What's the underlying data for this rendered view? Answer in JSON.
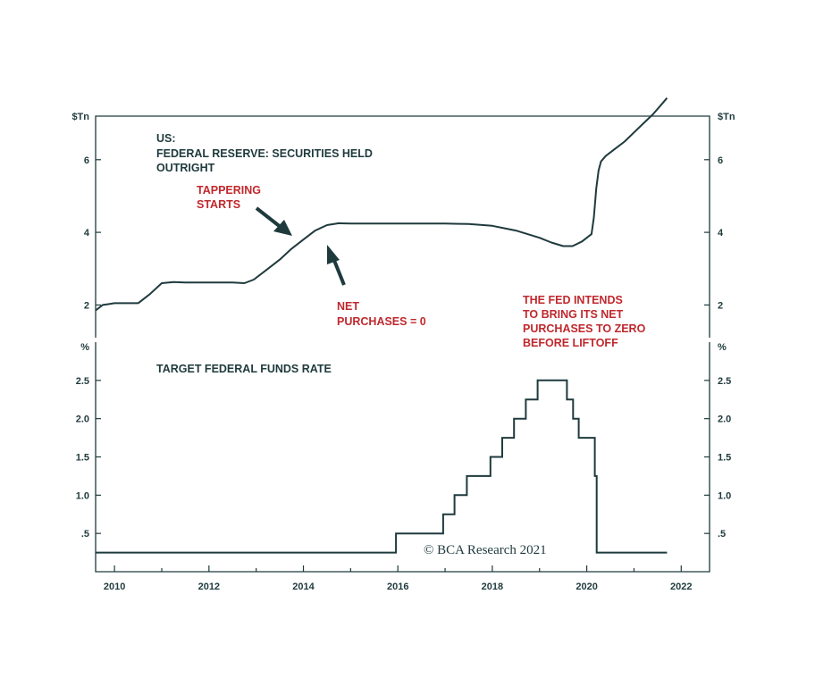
{
  "colors": {
    "ink": "#1f3a3d",
    "accent": "#c0282d"
  },
  "chart_data": [
    {
      "type": "line",
      "panel": "top",
      "title_lines": [
        "US:",
        "FEDERAL RESERVE: SECURITIES HELD",
        "OUTRIGHT"
      ],
      "unit_left": "$Tn",
      "unit_right": "$Tn",
      "ylim": [
        1.1,
        7.2
      ],
      "xlim": [
        2009.6,
        2022.6
      ],
      "yticks": [
        "2",
        "4",
        "6"
      ],
      "ytick_values": [
        2,
        4,
        6
      ],
      "series": [
        {
          "x": [
            2009.6,
            2009.75,
            2009.9,
            2010.0,
            2010.3,
            2010.5,
            2010.75,
            2011.0,
            2011.25,
            2011.5,
            2011.75,
            2012.0,
            2012.25,
            2012.5,
            2012.75,
            2012.95,
            2013.25,
            2013.5,
            2013.75,
            2014.0,
            2014.25,
            2014.5,
            2014.75,
            2015.0,
            2015.5,
            2016.0,
            2016.5,
            2017.0,
            2017.5,
            2018.0,
            2018.5,
            2019.0,
            2019.25,
            2019.5,
            2019.7,
            2019.9,
            2020.1,
            2020.15,
            2020.2,
            2020.25,
            2020.3,
            2020.4,
            2020.6,
            2020.8,
            2021.0,
            2021.2,
            2021.4,
            2021.6,
            2021.7
          ],
          "y": [
            1.85,
            2.0,
            2.03,
            2.05,
            2.05,
            2.05,
            2.3,
            2.6,
            2.63,
            2.62,
            2.62,
            2.62,
            2.62,
            2.62,
            2.6,
            2.7,
            3.0,
            3.25,
            3.55,
            3.8,
            4.05,
            4.2,
            4.25,
            4.24,
            4.24,
            4.24,
            4.24,
            4.24,
            4.23,
            4.18,
            4.05,
            3.85,
            3.72,
            3.62,
            3.62,
            3.75,
            3.95,
            4.4,
            5.2,
            5.7,
            5.95,
            6.1,
            6.3,
            6.5,
            6.75,
            7.0,
            7.25,
            7.55,
            7.7
          ]
        }
      ],
      "annotations": [
        {
          "text_lines": [
            "TAPPERING",
            "STARTS"
          ]
        },
        {
          "text_lines": [
            "NET",
            "PURCHASES = 0"
          ]
        },
        {
          "text_lines": [
            "THE FED INTENDS",
            "TO BRING ITS NET",
            "PURCHASES TO ZERO",
            "BEFORE LIFTOFF"
          ]
        }
      ]
    },
    {
      "type": "line",
      "panel": "bottom",
      "title": "TARGET FEDERAL FUNDS RATE",
      "unit_left": "%",
      "unit_right": "%",
      "ylim": [
        0,
        3
      ],
      "xlim": [
        2009.6,
        2022.6
      ],
      "yticks": [
        ".5",
        "1.0",
        "1.5",
        "2.0",
        "2.5"
      ],
      "ytick_values": [
        0.5,
        1.0,
        1.5,
        2.0,
        2.5
      ],
      "xticks": [
        "2010",
        "2012",
        "2014",
        "2016",
        "2018",
        "2020",
        "2022"
      ],
      "xtick_values": [
        2010,
        2012,
        2014,
        2016,
        2018,
        2020,
        2022
      ],
      "series": [
        {
          "step": true,
          "x": [
            2009.6,
            2015.96,
            2016.96,
            2017.2,
            2017.46,
            2017.96,
            2018.21,
            2018.46,
            2018.71,
            2018.96,
            2019.58,
            2019.71,
            2019.83,
            2020.17,
            2020.21,
            2021.7
          ],
          "y": [
            0.25,
            0.5,
            0.75,
            1.0,
            1.25,
            1.5,
            1.75,
            2.0,
            2.25,
            2.5,
            2.25,
            2.0,
            1.75,
            1.25,
            0.25,
            0.25
          ]
        }
      ]
    }
  ],
  "logo": {
    "text": "© BCA Research 2021"
  }
}
